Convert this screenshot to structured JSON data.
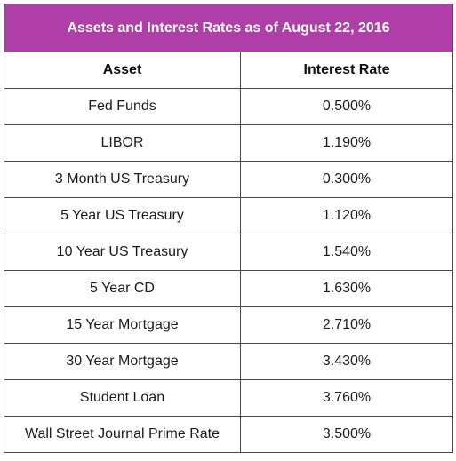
{
  "table": {
    "title": "Assets and Interest Rates as of August 22, 2016",
    "title_bg": "#b03ea8",
    "headers": [
      "Asset",
      "Interest Rate"
    ],
    "rows": [
      [
        "Fed Funds",
        "0.500%"
      ],
      [
        "LIBOR",
        "1.190%"
      ],
      [
        "3 Month US Treasury",
        "0.300%"
      ],
      [
        "5 Year US Treasury",
        "1.120%"
      ],
      [
        "10 Year US Treasury",
        "1.540%"
      ],
      [
        "5 Year CD",
        "1.630%"
      ],
      [
        "15 Year Mortgage",
        "2.710%"
      ],
      [
        "30 Year Mortgage",
        "3.430%"
      ],
      [
        "Student Loan",
        "3.760%"
      ],
      [
        "Wall Street Journal Prime Rate",
        "3.500%"
      ]
    ]
  }
}
